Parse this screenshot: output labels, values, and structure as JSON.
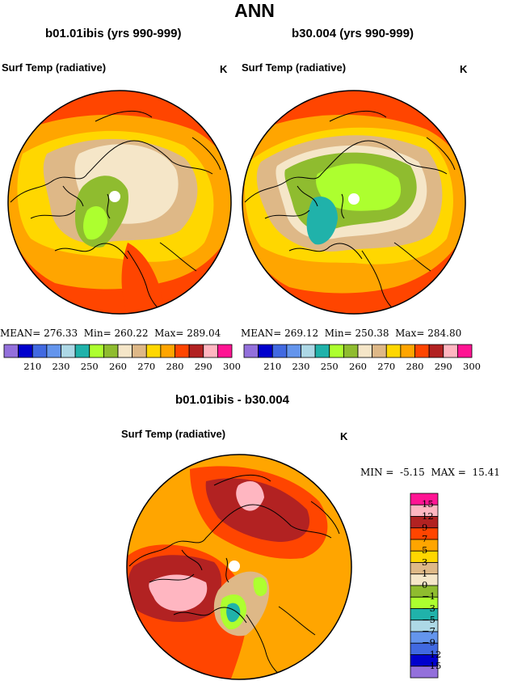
{
  "main_title": "ANN",
  "panels": [
    {
      "title": "b01.01ibis (yrs 990-999)",
      "subtitle": "Surf Temp (radiative)",
      "unit": "K",
      "mean_label": "MEAN=",
      "mean": "276.33",
      "min_label": "Min=",
      "min": "260.22",
      "max_label": "Max=",
      "max": "289.04"
    },
    {
      "title": "b30.004 (yrs 990-999)",
      "subtitle": "Surf Temp (radiative)",
      "unit": "K",
      "mean_label": "MEAN=",
      "mean": "269.12",
      "min_label": "Min=",
      "min": "250.38",
      "max_label": "Max=",
      "max": "284.80"
    }
  ],
  "diff_panel": {
    "title": "b01.01ibis - b30.004",
    "subtitle": "Surf Temp (radiative)",
    "unit": "K",
    "min_label": "MIN =",
    "min": "-5.15",
    "max_label": "MAX =",
    "max": "15.41"
  },
  "colors": {
    "abs_scale": [
      "#9370db",
      "#0000cd",
      "#4169e1",
      "#6495ed",
      "#add8e6",
      "#20b2aa",
      "#adff2f",
      "#8fbc2f",
      "#f5e6c8",
      "#deb887",
      "#ffd700",
      "#ffa500",
      "#ff4500",
      "#b22222",
      "#ffb6c1",
      "#ff1493"
    ],
    "diff_scale": [
      "#9370db",
      "#0000cd",
      "#4169e1",
      "#6495ed",
      "#add8e6",
      "#20b2aa",
      "#adff2f",
      "#8fbc2f",
      "#f5e6c8",
      "#deb887",
      "#ffd700",
      "#ffa500",
      "#ff4500",
      "#b22222",
      "#ffb6c1",
      "#ff1493"
    ]
  },
  "chart_data": [
    {
      "type": "heatmap",
      "title": "b01.01ibis (yrs 990-999)",
      "subtitle": "Surf Temp (radiative)",
      "unit": "K",
      "projection": "polar stereographic (North Pole)",
      "colorbar_ticks": [
        "210",
        "230",
        "250",
        "260",
        "270",
        "280",
        "290",
        "300"
      ],
      "stats": {
        "mean": 276.33,
        "min": 260.22,
        "max": 289.04
      }
    },
    {
      "type": "heatmap",
      "title": "b30.004 (yrs 990-999)",
      "subtitle": "Surf Temp (radiative)",
      "unit": "K",
      "projection": "polar stereographic (North Pole)",
      "colorbar_ticks": [
        "210",
        "230",
        "250",
        "260",
        "270",
        "280",
        "290",
        "300"
      ],
      "stats": {
        "mean": 269.12,
        "min": 250.38,
        "max": 284.8
      }
    },
    {
      "type": "heatmap",
      "title": "b01.01ibis - b30.004",
      "subtitle": "Surf Temp (radiative)",
      "unit": "K",
      "projection": "polar stereographic (North Pole)",
      "colorbar_ticks": [
        "15",
        "12",
        "9",
        "7",
        "5",
        "3",
        "1",
        "0",
        "−1",
        "−3",
        "−5",
        "−7",
        "−9",
        "−12",
        "−15"
      ],
      "stats": {
        "min": -5.15,
        "max": 15.41
      }
    }
  ]
}
